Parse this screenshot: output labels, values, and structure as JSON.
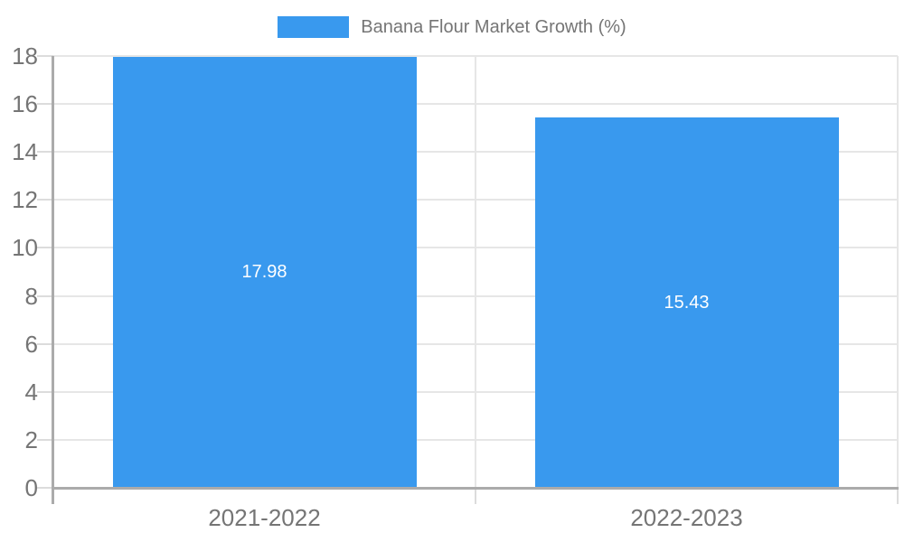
{
  "chart_data": {
    "type": "bar",
    "categories": [
      "2021-2022",
      "2022-2023"
    ],
    "series": [
      {
        "name": "Banana Flour Market Growth (%)",
        "color": "#3999EE",
        "values": [
          17.98,
          15.43
        ],
        "value_labels": [
          "17.98",
          "15.43"
        ]
      }
    ],
    "ylim": [
      0,
      18
    ],
    "yticks": [
      0,
      2,
      4,
      6,
      8,
      10,
      12,
      14,
      16,
      18
    ],
    "grid": true,
    "legend_position": "top",
    "data_label_color": "#ffffff",
    "axis_text_color": "#757575"
  }
}
